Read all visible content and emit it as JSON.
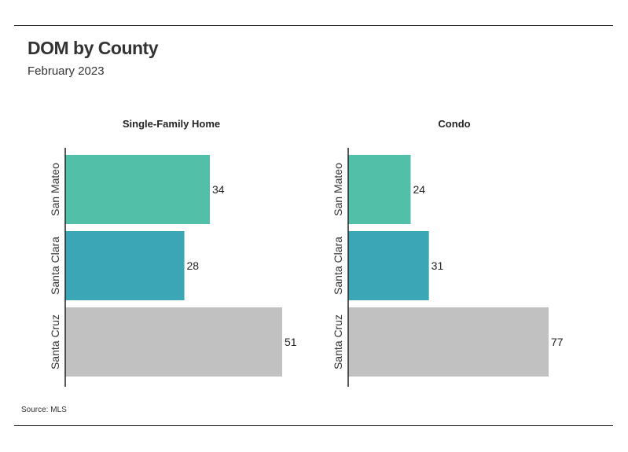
{
  "header": {
    "title": "DOM by County",
    "subtitle": "February 2023"
  },
  "footer": {
    "source": "Source: MLS"
  },
  "colors": {
    "San Mateo": "#52bfa9",
    "Santa Clara": "#3ba7b6",
    "Santa Cruz": "#c1c1c1"
  },
  "chart_data": [
    {
      "type": "bar",
      "orientation": "horizontal",
      "title": "Single-Family Home",
      "categories": [
        "San Mateo",
        "Santa Clara",
        "Santa Cruz"
      ],
      "values": [
        34,
        28,
        51
      ],
      "xlim": [
        0,
        51
      ]
    },
    {
      "type": "bar",
      "orientation": "horizontal",
      "title": "Condo",
      "categories": [
        "San Mateo",
        "Santa Clara",
        "Santa Cruz"
      ],
      "values": [
        24,
        31,
        77
      ],
      "xlim": [
        0,
        77
      ]
    }
  ]
}
